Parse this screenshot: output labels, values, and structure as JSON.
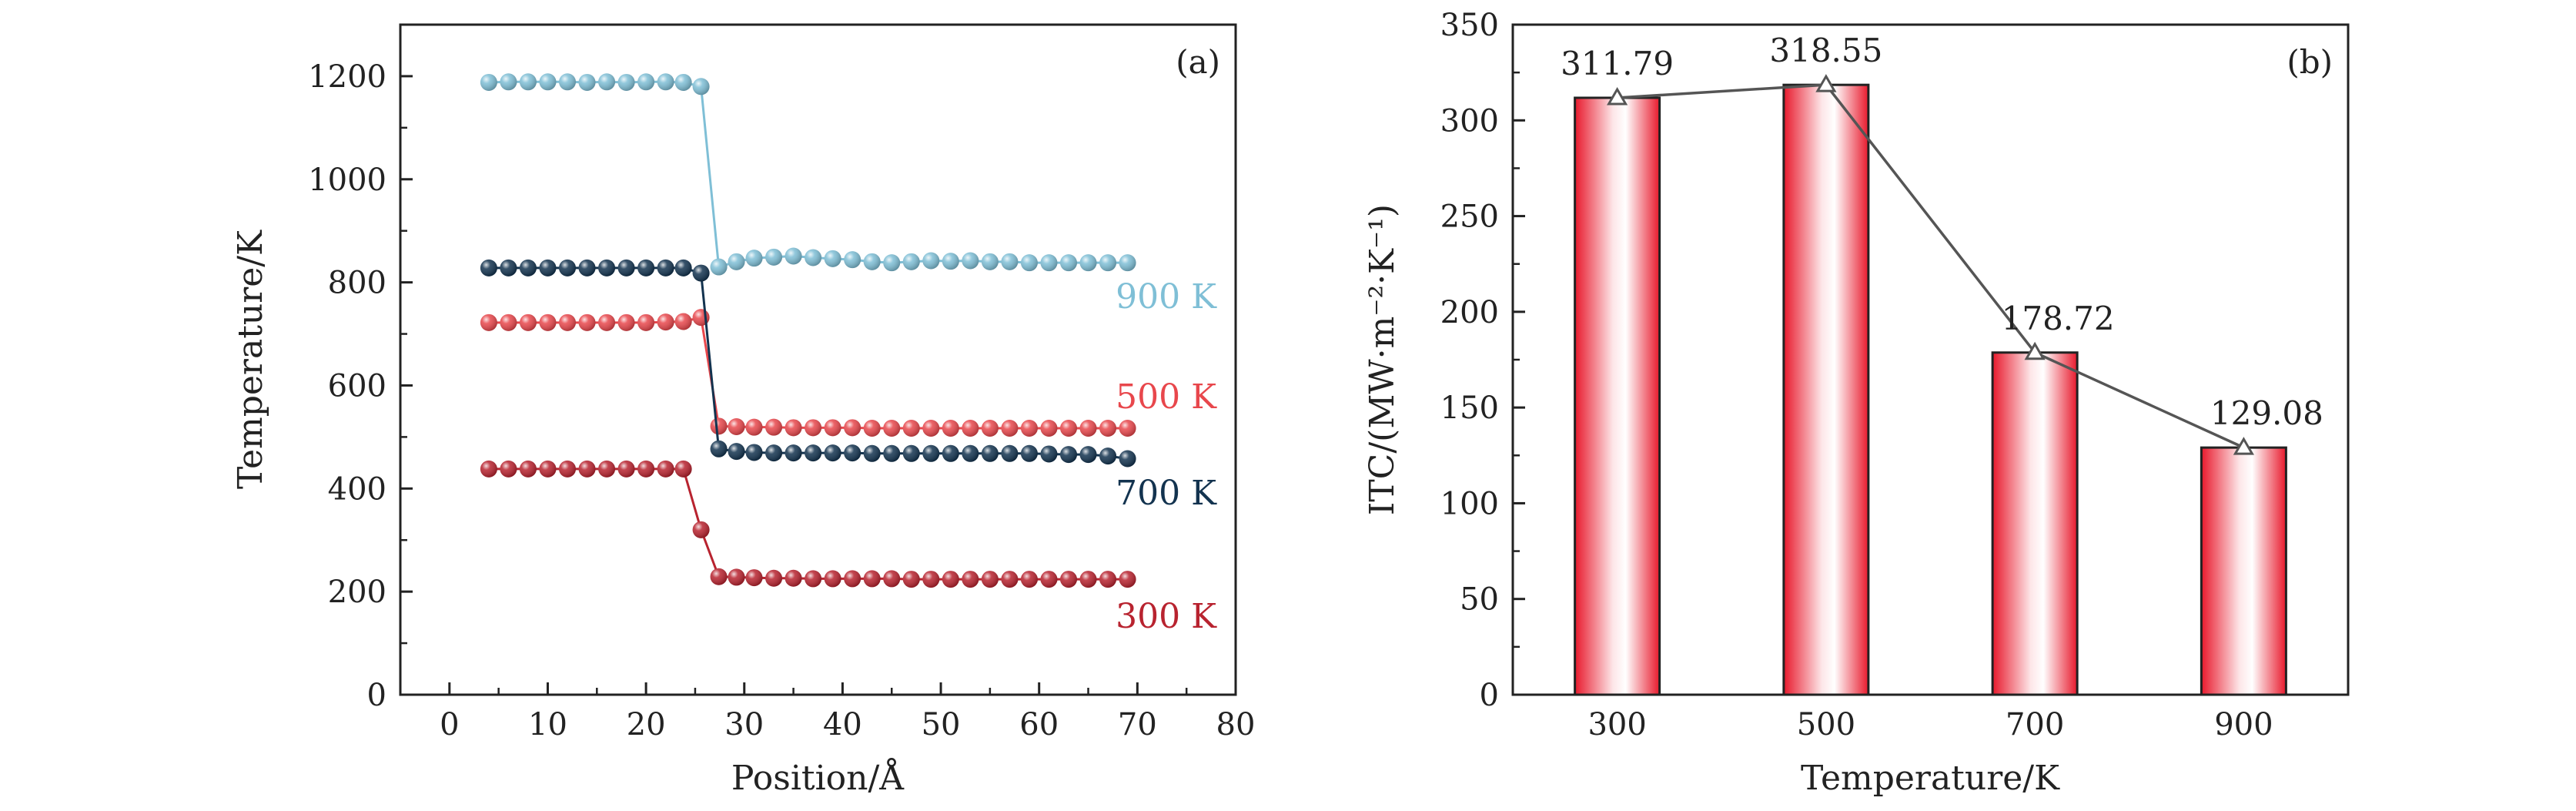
{
  "chart_data": [
    {
      "panel": "(a)",
      "type": "line",
      "xlabel": "Position/Å",
      "ylabel": "Temperature/K",
      "xlim": [
        -5,
        80
      ],
      "ylim": [
        0,
        1300
      ],
      "xticks": [
        0,
        10,
        20,
        30,
        40,
        50,
        60,
        70,
        80
      ],
      "yticks": [
        0,
        200,
        400,
        600,
        800,
        1000,
        1200
      ],
      "x": [
        4,
        6,
        8,
        10,
        12,
        14,
        16,
        18,
        20,
        22,
        23.8,
        25.6,
        27.4,
        29.2,
        31,
        33,
        35,
        37,
        39,
        41,
        43,
        45,
        47,
        49,
        51,
        53,
        55,
        57,
        59,
        61,
        63,
        65,
        67,
        69
      ],
      "series": [
        {
          "name": "900 K",
          "color": "#7fbfd6",
          "values": [
            1188,
            1189,
            1189,
            1189,
            1189,
            1188,
            1189,
            1188,
            1189,
            1189,
            1188,
            1180,
            830,
            840,
            847,
            849,
            851,
            848,
            846,
            844,
            840,
            838,
            840,
            842,
            841,
            842,
            840,
            840,
            838,
            838,
            838,
            838,
            838,
            838
          ]
        },
        {
          "name": "500 K",
          "color": "#e8474c",
          "values": [
            722,
            722,
            722,
            722,
            722,
            722,
            722,
            722,
            722,
            723,
            724,
            732,
            521,
            520,
            519,
            519,
            518,
            518,
            518,
            518,
            517,
            517,
            517,
            517,
            517,
            517,
            517,
            517,
            517,
            517,
            517,
            517,
            517,
            517
          ]
        },
        {
          "name": "700 K",
          "color": "#13334f",
          "values": [
            828,
            828,
            828,
            828,
            828,
            828,
            828,
            828,
            828,
            828,
            828,
            818,
            477,
            472,
            470,
            469,
            469,
            469,
            469,
            469,
            468,
            468,
            468,
            468,
            468,
            468,
            468,
            468,
            468,
            467,
            466,
            466,
            463,
            458
          ]
        },
        {
          "name": "300 K",
          "color": "#b8232f",
          "values": [
            438,
            438,
            438,
            438,
            438,
            438,
            438,
            438,
            438,
            438,
            438,
            320,
            229,
            228,
            227,
            226,
            226,
            225,
            225,
            225,
            225,
            225,
            224,
            224,
            224,
            224,
            224,
            224,
            224,
            224,
            224,
            224,
            224,
            224
          ]
        }
      ]
    },
    {
      "panel": "(b)",
      "type": "bar",
      "xlabel": "Temperature/K",
      "ylabel": "ITC/(MW·m⁻²·K⁻¹)",
      "categories": [
        "300",
        "500",
        "700",
        "900"
      ],
      "values": [
        311.79,
        318.55,
        178.72,
        129.08
      ],
      "value_labels": [
        "311.79",
        "318.55",
        "178.72",
        "129.08"
      ],
      "ylim": [
        0,
        350
      ],
      "yticks": [
        0,
        50,
        100,
        150,
        200,
        250,
        300,
        350
      ],
      "bar_color": "#e8192c",
      "line_color": "#555555"
    }
  ]
}
